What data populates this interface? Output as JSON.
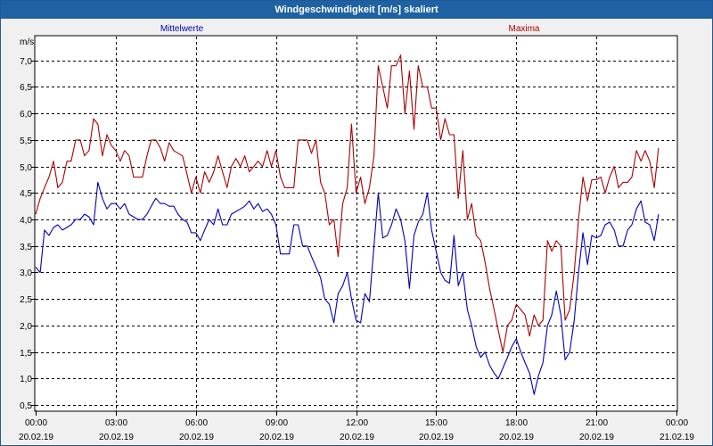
{
  "window": {
    "title": "Windgeschwindigkeit [m/s] skaliert"
  },
  "chart_data": {
    "type": "line",
    "title": "Windgeschwindigkeit [m/s] skaliert",
    "ylabel": "m/s",
    "xlabel": "",
    "ylim": [
      0.4,
      7.45
    ],
    "xlim": [
      0,
      24
    ],
    "grid": true,
    "legend_placement": "top",
    "yticks": [
      0.5,
      1.0,
      1.5,
      2.0,
      2.5,
      3.0,
      3.5,
      4.0,
      4.5,
      5.0,
      5.5,
      6.0,
      6.5,
      7.0
    ],
    "ytick_labels": [
      "0,5",
      "1,0",
      "1,5",
      "2,0",
      "2,5",
      "3,0",
      "3,5",
      "4,0",
      "4,5",
      "5,0",
      "5,5",
      "6,0",
      "6,5",
      "7,0"
    ],
    "xticks": [
      {
        "x": 0,
        "time": "00:00",
        "date": "20.02.19"
      },
      {
        "x": 3,
        "time": "03:00",
        "date": "20.02.19"
      },
      {
        "x": 6,
        "time": "06:00",
        "date": "20.02.19"
      },
      {
        "x": 9,
        "time": "09:00",
        "date": "20.02.19"
      },
      {
        "x": 12,
        "time": "12:00",
        "date": "20.02.19"
      },
      {
        "x": 15,
        "time": "15:00",
        "date": "20.02.19"
      },
      {
        "x": 18,
        "time": "18:00",
        "date": "20.02.19"
      },
      {
        "x": 21,
        "time": "21:00",
        "date": "20.02.19"
      },
      {
        "x": 24,
        "time": "00:00",
        "date": "21.02.19"
      }
    ],
    "series": [
      {
        "name": "Mittelwerte",
        "color": "#0000bb",
        "points": [
          [
            0,
            3.1
          ],
          [
            0.17,
            3.0
          ],
          [
            0.33,
            3.8
          ],
          [
            0.5,
            3.7
          ],
          [
            0.67,
            3.85
          ],
          [
            0.83,
            3.9
          ],
          [
            1,
            3.8
          ],
          [
            1.17,
            3.85
          ],
          [
            1.33,
            3.9
          ],
          [
            1.5,
            4.0
          ],
          [
            1.67,
            4.0
          ],
          [
            1.83,
            4.1
          ],
          [
            2,
            4.05
          ],
          [
            2.17,
            3.9
          ],
          [
            2.33,
            4.7
          ],
          [
            2.5,
            4.4
          ],
          [
            2.67,
            4.2
          ],
          [
            2.83,
            4.3
          ],
          [
            3,
            4.3
          ],
          [
            3.17,
            4.2
          ],
          [
            3.33,
            4.3
          ],
          [
            3.5,
            4.1
          ],
          [
            3.67,
            4.05
          ],
          [
            3.83,
            4.0
          ],
          [
            4,
            4.0
          ],
          [
            4.17,
            4.1
          ],
          [
            4.33,
            4.25
          ],
          [
            4.5,
            4.4
          ],
          [
            4.67,
            4.3
          ],
          [
            4.83,
            4.3
          ],
          [
            5,
            4.25
          ],
          [
            5.17,
            4.25
          ],
          [
            5.33,
            4.1
          ],
          [
            5.5,
            4.0
          ],
          [
            5.67,
            3.95
          ],
          [
            5.83,
            3.75
          ],
          [
            6,
            3.75
          ],
          [
            6.17,
            3.6
          ],
          [
            6.33,
            3.8
          ],
          [
            6.5,
            4.0
          ],
          [
            6.67,
            3.9
          ],
          [
            6.83,
            4.2
          ],
          [
            7,
            3.9
          ],
          [
            7.17,
            3.9
          ],
          [
            7.33,
            4.1
          ],
          [
            7.5,
            4.15
          ],
          [
            7.67,
            4.2
          ],
          [
            7.83,
            4.25
          ],
          [
            8,
            4.35
          ],
          [
            8.17,
            4.2
          ],
          [
            8.33,
            4.3
          ],
          [
            8.5,
            4.15
          ],
          [
            8.67,
            4.2
          ],
          [
            8.83,
            4.1
          ],
          [
            9,
            3.9
          ],
          [
            9.17,
            3.35
          ],
          [
            9.33,
            3.35
          ],
          [
            9.5,
            3.35
          ],
          [
            9.67,
            3.9
          ],
          [
            9.83,
            3.9
          ],
          [
            10,
            3.5
          ],
          [
            10.17,
            3.5
          ],
          [
            10.33,
            3.3
          ],
          [
            10.5,
            3.1
          ],
          [
            10.67,
            2.9
          ],
          [
            10.83,
            2.5
          ],
          [
            11,
            2.4
          ],
          [
            11.17,
            2.05
          ],
          [
            11.33,
            2.6
          ],
          [
            11.5,
            2.75
          ],
          [
            11.67,
            3.0
          ],
          [
            11.83,
            2.5
          ],
          [
            12,
            2.1
          ],
          [
            12.17,
            2.05
          ],
          [
            12.33,
            2.6
          ],
          [
            12.5,
            2.45
          ],
          [
            12.67,
            3.5
          ],
          [
            12.83,
            4.5
          ],
          [
            13,
            3.65
          ],
          [
            13.17,
            3.7
          ],
          [
            13.33,
            3.9
          ],
          [
            13.5,
            4.2
          ],
          [
            13.67,
            4.0
          ],
          [
            13.83,
            3.6
          ],
          [
            14,
            2.7
          ],
          [
            14.17,
            3.7
          ],
          [
            14.33,
            3.95
          ],
          [
            14.5,
            4.1
          ],
          [
            14.67,
            4.5
          ],
          [
            14.83,
            3.8
          ],
          [
            15,
            3.4
          ],
          [
            15.17,
            3.0
          ],
          [
            15.33,
            2.85
          ],
          [
            15.5,
            2.8
          ],
          [
            15.67,
            3.7
          ],
          [
            15.83,
            2.75
          ],
          [
            16,
            3.0
          ],
          [
            16.17,
            2.3
          ],
          [
            16.33,
            2.0
          ],
          [
            16.5,
            1.6
          ],
          [
            16.67,
            1.4
          ],
          [
            16.83,
            1.5
          ],
          [
            17,
            1.25
          ],
          [
            17.17,
            1.1
          ],
          [
            17.33,
            1.0
          ],
          [
            17.5,
            1.2
          ],
          [
            17.67,
            1.4
          ],
          [
            17.83,
            1.6
          ],
          [
            18,
            1.75
          ],
          [
            18.17,
            1.5
          ],
          [
            18.33,
            1.3
          ],
          [
            18.5,
            1.1
          ],
          [
            18.67,
            0.7
          ],
          [
            18.83,
            1.05
          ],
          [
            19,
            1.3
          ],
          [
            19.17,
            2.0
          ],
          [
            19.33,
            2.2
          ],
          [
            19.5,
            2.65
          ],
          [
            19.67,
            2.2
          ],
          [
            19.83,
            1.35
          ],
          [
            20,
            1.5
          ],
          [
            20.17,
            2.1
          ],
          [
            20.33,
            3.0
          ],
          [
            20.5,
            3.75
          ],
          [
            20.67,
            3.15
          ],
          [
            20.83,
            3.7
          ],
          [
            21,
            3.65
          ],
          [
            21.17,
            3.7
          ],
          [
            21.33,
            3.9
          ],
          [
            21.5,
            3.95
          ],
          [
            21.67,
            3.8
          ],
          [
            21.83,
            3.5
          ],
          [
            22,
            3.5
          ],
          [
            22.17,
            3.8
          ],
          [
            22.33,
            3.9
          ],
          [
            22.5,
            4.2
          ],
          [
            22.67,
            4.35
          ],
          [
            22.83,
            3.95
          ],
          [
            23,
            3.9
          ],
          [
            23.17,
            3.6
          ],
          [
            23.33,
            4.1
          ]
        ]
      },
      {
        "name": "Maxima",
        "color": "#aa0000",
        "points": [
          [
            0,
            4.1
          ],
          [
            0.17,
            4.4
          ],
          [
            0.33,
            4.6
          ],
          [
            0.5,
            4.8
          ],
          [
            0.67,
            5.1
          ],
          [
            0.83,
            4.6
          ],
          [
            1,
            4.7
          ],
          [
            1.17,
            5.1
          ],
          [
            1.33,
            5.1
          ],
          [
            1.5,
            5.5
          ],
          [
            1.67,
            5.5
          ],
          [
            1.83,
            5.2
          ],
          [
            2,
            5.3
          ],
          [
            2.17,
            5.9
          ],
          [
            2.33,
            5.8
          ],
          [
            2.5,
            5.2
          ],
          [
            2.67,
            5.6
          ],
          [
            2.83,
            5.4
          ],
          [
            3,
            5.3
          ],
          [
            3.17,
            5.1
          ],
          [
            3.33,
            5.3
          ],
          [
            3.5,
            5.2
          ],
          [
            3.67,
            4.8
          ],
          [
            3.83,
            4.8
          ],
          [
            4,
            4.8
          ],
          [
            4.17,
            5.2
          ],
          [
            4.33,
            5.5
          ],
          [
            4.5,
            5.5
          ],
          [
            4.67,
            5.35
          ],
          [
            4.83,
            5.1
          ],
          [
            5,
            5.45
          ],
          [
            5.17,
            5.3
          ],
          [
            5.33,
            5.25
          ],
          [
            5.5,
            5.2
          ],
          [
            5.67,
            4.85
          ],
          [
            5.83,
            4.5
          ],
          [
            6,
            4.8
          ],
          [
            6.17,
            4.5
          ],
          [
            6.33,
            4.9
          ],
          [
            6.5,
            4.7
          ],
          [
            6.67,
            4.9
          ],
          [
            6.83,
            5.2
          ],
          [
            7,
            4.9
          ],
          [
            7.17,
            4.6
          ],
          [
            7.33,
            5.0
          ],
          [
            7.5,
            5.15
          ],
          [
            7.67,
            5.0
          ],
          [
            7.83,
            5.2
          ],
          [
            8,
            4.9
          ],
          [
            8.17,
            5.0
          ],
          [
            8.33,
            5.1
          ],
          [
            8.5,
            5.0
          ],
          [
            8.67,
            5.3
          ],
          [
            8.83,
            5.0
          ],
          [
            9,
            5.3
          ],
          [
            9.17,
            4.8
          ],
          [
            9.33,
            4.6
          ],
          [
            9.5,
            4.6
          ],
          [
            9.67,
            4.6
          ],
          [
            9.83,
            5.5
          ],
          [
            10,
            5.5
          ],
          [
            10.17,
            5.5
          ],
          [
            10.33,
            5.25
          ],
          [
            10.5,
            5.5
          ],
          [
            10.67,
            4.7
          ],
          [
            10.83,
            4.5
          ],
          [
            11,
            3.9
          ],
          [
            11.17,
            4.0
          ],
          [
            11.33,
            3.3
          ],
          [
            11.5,
            4.3
          ],
          [
            11.67,
            4.6
          ],
          [
            11.83,
            5.8
          ],
          [
            12,
            4.5
          ],
          [
            12.17,
            4.8
          ],
          [
            12.33,
            4.3
          ],
          [
            12.5,
            4.6
          ],
          [
            12.67,
            5.2
          ],
          [
            12.83,
            6.9
          ],
          [
            13,
            6.5
          ],
          [
            13.17,
            6.1
          ],
          [
            13.33,
            6.9
          ],
          [
            13.5,
            6.9
          ],
          [
            13.67,
            7.1
          ],
          [
            13.83,
            6.0
          ],
          [
            14,
            6.8
          ],
          [
            14.17,
            5.7
          ],
          [
            14.33,
            6.9
          ],
          [
            14.5,
            6.5
          ],
          [
            14.67,
            6.5
          ],
          [
            14.83,
            6.1
          ],
          [
            15,
            6.1
          ],
          [
            15.17,
            5.5
          ],
          [
            15.33,
            5.9
          ],
          [
            15.5,
            5.6
          ],
          [
            15.67,
            5.6
          ],
          [
            15.83,
            4.4
          ],
          [
            16,
            5.3
          ],
          [
            16.17,
            4.0
          ],
          [
            16.33,
            4.3
          ],
          [
            16.5,
            3.7
          ],
          [
            16.67,
            3.6
          ],
          [
            16.83,
            3.2
          ],
          [
            17,
            2.7
          ],
          [
            17.17,
            2.3
          ],
          [
            17.33,
            1.9
          ],
          [
            17.5,
            1.5
          ],
          [
            17.67,
            2.0
          ],
          [
            17.83,
            2.1
          ],
          [
            18,
            2.4
          ],
          [
            18.17,
            2.3
          ],
          [
            18.33,
            2.2
          ],
          [
            18.5,
            1.8
          ],
          [
            18.67,
            2.2
          ],
          [
            18.83,
            2.0
          ],
          [
            19,
            2.1
          ],
          [
            19.17,
            3.6
          ],
          [
            19.33,
            3.4
          ],
          [
            19.5,
            3.6
          ],
          [
            19.67,
            3.5
          ],
          [
            19.83,
            2.1
          ],
          [
            20,
            2.3
          ],
          [
            20.17,
            3.0
          ],
          [
            20.33,
            4.0
          ],
          [
            20.5,
            4.8
          ],
          [
            20.67,
            4.35
          ],
          [
            20.83,
            4.75
          ],
          [
            21,
            4.75
          ],
          [
            21.17,
            4.8
          ],
          [
            21.33,
            4.5
          ],
          [
            21.5,
            4.8
          ],
          [
            21.67,
            5.0
          ],
          [
            21.83,
            4.6
          ],
          [
            22,
            4.7
          ],
          [
            22.17,
            4.7
          ],
          [
            22.33,
            4.8
          ],
          [
            22.5,
            5.3
          ],
          [
            22.67,
            5.1
          ],
          [
            22.83,
            5.3
          ],
          [
            23,
            5.1
          ],
          [
            23.17,
            4.6
          ],
          [
            23.33,
            5.35
          ]
        ]
      }
    ]
  }
}
